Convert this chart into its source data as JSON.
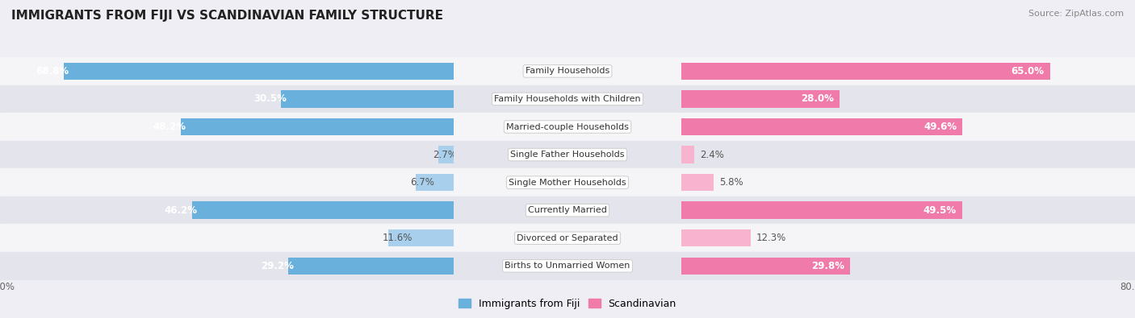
{
  "title": "IMMIGRANTS FROM FIJI VS SCANDINAVIAN FAMILY STRUCTURE",
  "source": "Source: ZipAtlas.com",
  "categories": [
    "Family Households",
    "Family Households with Children",
    "Married-couple Households",
    "Single Father Households",
    "Single Mother Households",
    "Currently Married",
    "Divorced or Separated",
    "Births to Unmarried Women"
  ],
  "fiji_values": [
    68.8,
    30.5,
    48.2,
    2.7,
    6.7,
    46.2,
    11.6,
    29.2
  ],
  "scand_values": [
    65.0,
    28.0,
    49.6,
    2.4,
    5.8,
    49.5,
    12.3,
    29.8
  ],
  "fiji_color": "#6ab0dc",
  "fiji_color_light": "#a8d0ec",
  "scand_color": "#f07aaa",
  "scand_color_light": "#f8b4ce",
  "axis_max": 80.0,
  "bg_color": "#eeeef4",
  "row_bg_light": "#f5f5f8",
  "row_bg_dark": "#e4e4ec",
  "label_font_size": 8.5,
  "title_font_size": 11,
  "value_font_size": 8.5
}
